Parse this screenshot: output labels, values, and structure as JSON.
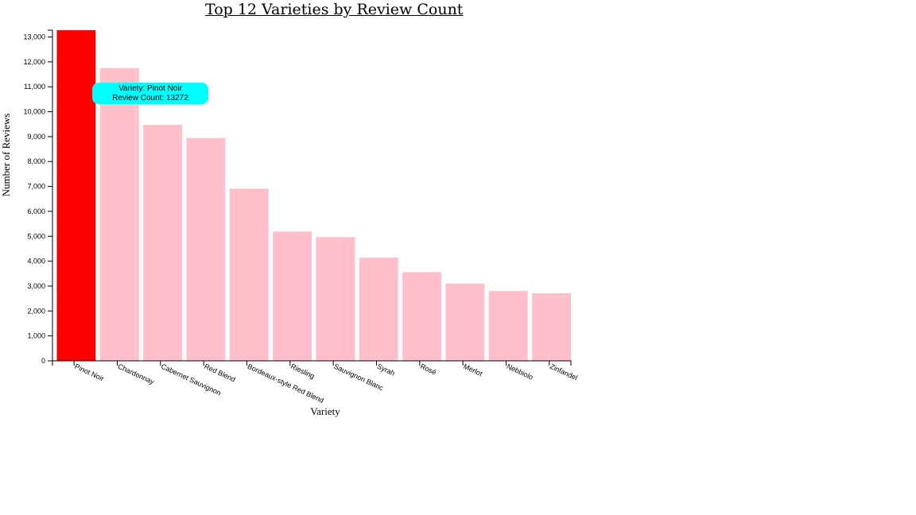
{
  "title": "Top 12 Varieties by Review Count",
  "tooltip": {
    "line1": "Variety: Pinot Noir",
    "line2": "Review Count: 13272"
  },
  "colors": {
    "highlight": "#ff0000",
    "bar": "#ffc0cb",
    "tooltip_bg": "#00ffff"
  },
  "chart_data": {
    "type": "bar",
    "title": "Top 12 Varieties by Review Count",
    "xlabel": "Variety",
    "ylabel": "Number of Reviews",
    "categories": [
      "Pinot Noir",
      "Chardonnay",
      "Cabernet Sauvignon",
      "Red Blend",
      "Bordeaux-style Red Blend",
      "Riesling",
      "Sauvignon Blanc",
      "Syrah",
      "Rosé",
      "Merlot",
      "Nebbiolo",
      "Zinfandel"
    ],
    "values": [
      13272,
      11753,
      9472,
      8946,
      6915,
      5189,
      4967,
      4142,
      3564,
      3102,
      2804,
      2714
    ],
    "highlighted": "Pinot Noir",
    "ylim": [
      0,
      13272
    ],
    "yticks": [
      0,
      1000,
      2000,
      3000,
      4000,
      5000,
      6000,
      7000,
      8000,
      9000,
      10000,
      11000,
      12000,
      13000
    ],
    "ytick_labels": [
      "0",
      "1,000",
      "2,000",
      "3,000",
      "4,000",
      "5,000",
      "6,000",
      "7,000",
      "8,000",
      "9,000",
      "10,000",
      "11,000",
      "12,000",
      "13,000"
    ],
    "grid": false,
    "legend": "none"
  }
}
